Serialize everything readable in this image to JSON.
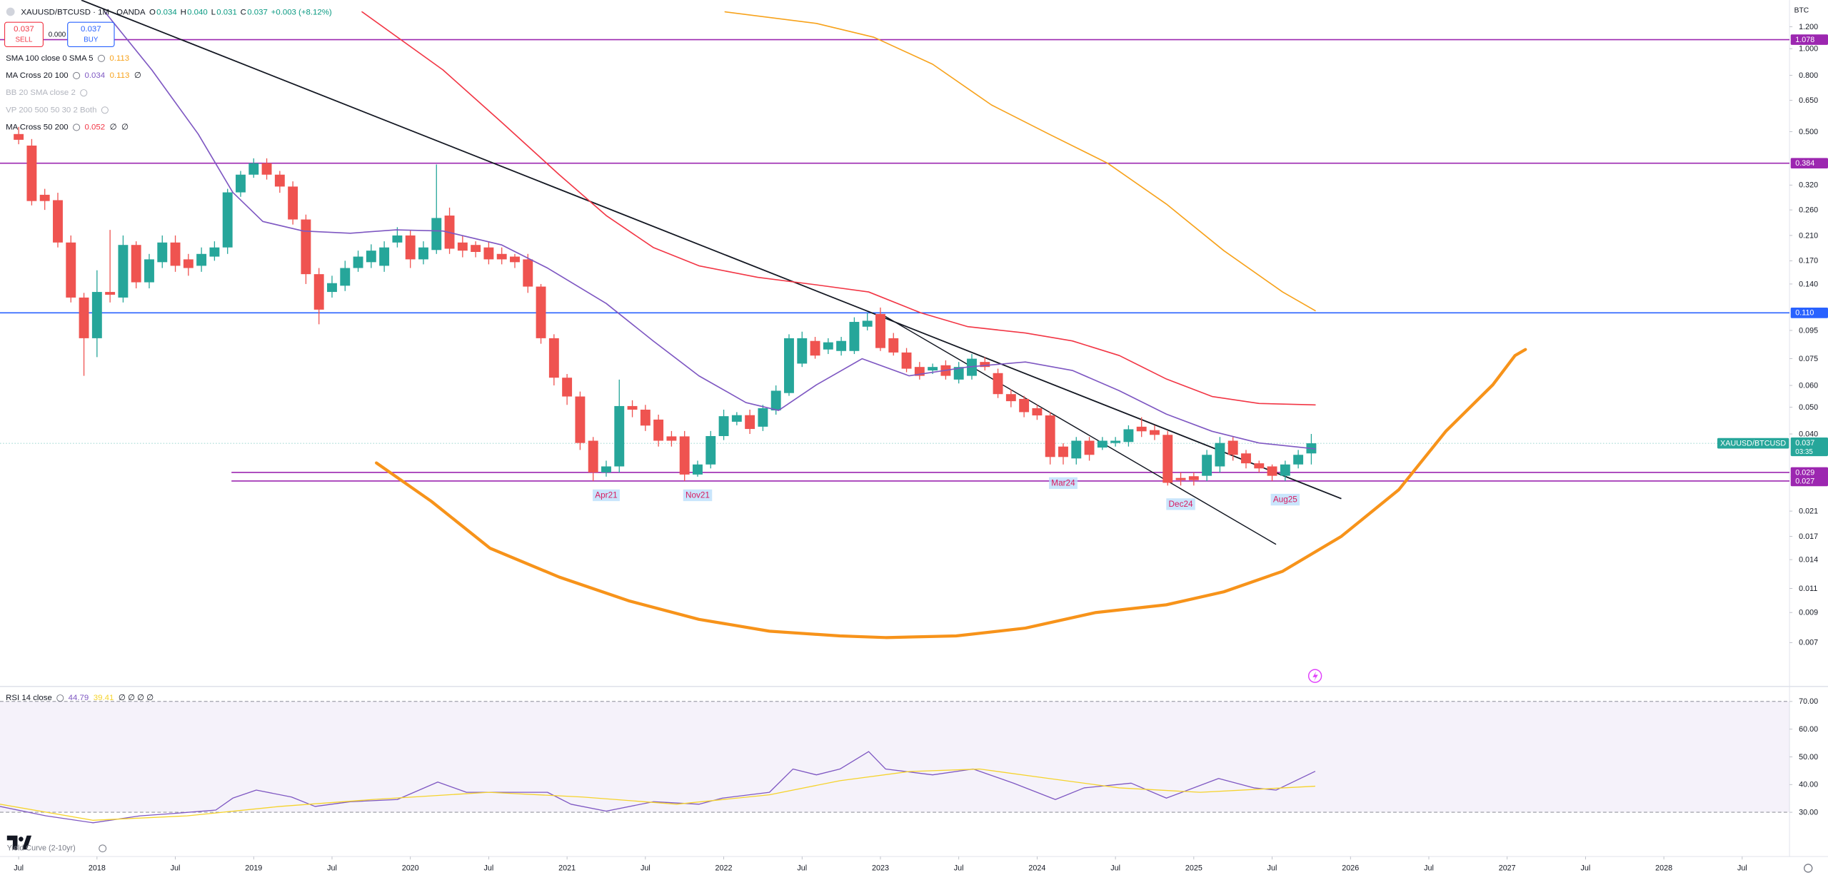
{
  "header": {
    "symbol": "XAUUSD/BTCUSD · 1M · OANDA",
    "ohlc": [
      {
        "k": "O",
        "v": "0.034"
      },
      {
        "k": "H",
        "v": "0.040"
      },
      {
        "k": "L",
        "v": "0.031"
      },
      {
        "k": "C",
        "v": "0.037"
      }
    ],
    "change": "+0.003 (+8.12%)",
    "sell_price": "0.037",
    "sell": "SELL",
    "spread": "0.000",
    "buy_price": "0.037",
    "buy": "BUY",
    "currency": "BTC",
    "indicators": [
      {
        "name": "SMA 100 close 0 SMA 5",
        "values": [
          {
            "text": "0.113",
            "color": "#f7a21b"
          }
        ]
      },
      {
        "name": "MA Cross 20 100",
        "values": [
          {
            "text": "0.034",
            "color": "#7e57c2"
          },
          {
            "text": "0.113",
            "color": "#f7a21b"
          },
          {
            "text": "∅",
            "color": "#131722"
          }
        ]
      },
      {
        "name": "BB 20 SMA close 2",
        "hidden": true,
        "values": []
      },
      {
        "name": "VP 200 500 50 30 2 Both",
        "hidden": true,
        "values": []
      },
      {
        "name": "MA Cross 50 200",
        "values": [
          {
            "text": "0.052",
            "color": "#f23645"
          },
          {
            "text": "∅",
            "color": "#131722"
          },
          {
            "text": "∅",
            "color": "#131722"
          }
        ]
      }
    ],
    "yield_curve": "Yield Curve (2-10yr)"
  },
  "chart_data": [
    {
      "type": "candlestick",
      "log_scale": true,
      "grid": false,
      "up_color": "#26a69a",
      "down_color": "#ef5350",
      "xlim": [
        -0.4286,
        136.625
      ],
      "ylim": [
        0.0049,
        1.5
      ],
      "xticks": [
        {
          "value": 1,
          "label": "Jul"
        },
        {
          "value": 7,
          "label": "2018"
        },
        {
          "value": 13,
          "label": "Jul"
        },
        {
          "value": 19,
          "label": "2019"
        },
        {
          "value": 25,
          "label": "Jul"
        },
        {
          "value": 31,
          "label": "2020"
        },
        {
          "value": 37,
          "label": "Jul"
        },
        {
          "value": 43,
          "label": "2021"
        },
        {
          "value": 49,
          "label": "Jul"
        },
        {
          "value": 55,
          "label": "2022"
        },
        {
          "value": 61,
          "label": "Jul"
        },
        {
          "value": 67,
          "label": "2023"
        },
        {
          "value": 73,
          "label": "Jul"
        },
        {
          "value": 79,
          "label": "2024"
        },
        {
          "value": 85,
          "label": "Jul"
        },
        {
          "value": 91,
          "label": "2025"
        },
        {
          "value": 97,
          "label": "Jul"
        },
        {
          "value": 103,
          "label": "2026"
        },
        {
          "value": 109,
          "label": "Jul"
        },
        {
          "value": 115,
          "label": "2027"
        },
        {
          "value": 121,
          "label": "Jul"
        },
        {
          "value": 127,
          "label": "2028"
        },
        {
          "value": 133,
          "label": "Jul"
        }
      ],
      "yticks": [
        {
          "value": 1.2,
          "label": "1.200"
        },
        {
          "value": 1.0,
          "label": "1.000"
        },
        {
          "value": 0.8,
          "label": "0.800"
        },
        {
          "value": 0.65,
          "label": "0.650"
        },
        {
          "value": 0.5,
          "label": "0.500"
        },
        {
          "value": 0.32,
          "label": "0.320"
        },
        {
          "value": 0.26,
          "label": "0.260"
        },
        {
          "value": 0.21,
          "label": "0.210"
        },
        {
          "value": 0.17,
          "label": "0.170"
        },
        {
          "value": 0.14,
          "label": "0.140"
        },
        {
          "value": 0.095,
          "label": "0.095"
        },
        {
          "value": 0.075,
          "label": "0.075"
        },
        {
          "value": 0.06,
          "label": "0.060"
        },
        {
          "value": 0.05,
          "label": "0.050"
        },
        {
          "value": 0.04,
          "label": "0.040"
        },
        {
          "value": 0.021,
          "label": "0.021"
        },
        {
          "value": 0.017,
          "label": "0.017"
        },
        {
          "value": 0.014,
          "label": "0.014"
        },
        {
          "value": 0.011,
          "label": "0.011"
        },
        {
          "value": 0.009,
          "label": "0.009"
        },
        {
          "value": 0.007,
          "label": "0.007"
        }
      ],
      "open": [
        0.49,
        0.445,
        0.295,
        0.282,
        0.198,
        0.125,
        0.089,
        0.131,
        0.125,
        0.194,
        0.142,
        0.168,
        0.198,
        0.172,
        0.163,
        0.176,
        0.19,
        0.301,
        0.349,
        0.384,
        0.349,
        0.316,
        0.24,
        0.152,
        0.131,
        0.138,
        0.16,
        0.168,
        0.163,
        0.198,
        0.21,
        0.172,
        0.186,
        0.248,
        0.198,
        0.194,
        0.19,
        0.18,
        0.176,
        0.172,
        0.137,
        0.089,
        0.064,
        0.0547,
        0.0378,
        0.029,
        0.0305,
        0.0505,
        0.049,
        0.0451,
        0.0392,
        0.0392,
        0.0285,
        0.031,
        0.0393,
        0.0443,
        0.0468,
        0.0425,
        0.0487,
        0.0563,
        0.072,
        0.087,
        0.081,
        0.08,
        0.08,
        0.098,
        0.109,
        0.089,
        0.079,
        0.07,
        0.068,
        0.071,
        0.063,
        0.065,
        0.073,
        0.0665,
        0.0558,
        0.0536,
        0.0496,
        0.0467,
        0.036,
        0.0326,
        0.0378,
        0.0357,
        0.0371,
        0.0374,
        0.0425,
        0.0413,
        0.0397,
        0.0277,
        0.0281,
        0.0282,
        0.0305,
        0.0378,
        0.034,
        0.0313,
        0.0305,
        0.0282,
        0.031,
        0.034
      ],
      "high": [
        0.52,
        0.47,
        0.31,
        0.3,
        0.21,
        0.13,
        0.157,
        0.22,
        0.21,
        0.2,
        0.18,
        0.21,
        0.21,
        0.18,
        0.19,
        0.2,
        0.31,
        0.36,
        0.4,
        0.4,
        0.36,
        0.33,
        0.25,
        0.16,
        0.15,
        0.17,
        0.185,
        0.195,
        0.2,
        0.225,
        0.22,
        0.2,
        0.38,
        0.265,
        0.21,
        0.2,
        0.2,
        0.19,
        0.18,
        0.18,
        0.14,
        0.092,
        0.066,
        0.057,
        0.039,
        0.032,
        0.063,
        0.053,
        0.051,
        0.047,
        0.041,
        0.041,
        0.032,
        0.041,
        0.049,
        0.048,
        0.049,
        0.051,
        0.06,
        0.092,
        0.094,
        0.09,
        0.089,
        0.09,
        0.106,
        0.11,
        0.115,
        0.093,
        0.082,
        0.073,
        0.072,
        0.074,
        0.073,
        0.078,
        0.076,
        0.069,
        0.058,
        0.055,
        0.051,
        0.048,
        0.037,
        0.039,
        0.039,
        0.039,
        0.039,
        0.043,
        0.046,
        0.043,
        0.041,
        0.029,
        0.029,
        0.035,
        0.039,
        0.039,
        0.035,
        0.032,
        0.031,
        0.032,
        0.035,
        0.04
      ],
      "low": [
        0.45,
        0.27,
        0.26,
        0.19,
        0.12,
        0.065,
        0.076,
        0.12,
        0.12,
        0.135,
        0.135,
        0.16,
        0.155,
        0.15,
        0.155,
        0.17,
        0.18,
        0.29,
        0.34,
        0.335,
        0.3,
        0.23,
        0.14,
        0.1,
        0.125,
        0.132,
        0.155,
        0.16,
        0.155,
        0.19,
        0.16,
        0.165,
        0.18,
        0.18,
        0.175,
        0.175,
        0.165,
        0.165,
        0.16,
        0.13,
        0.085,
        0.06,
        0.051,
        0.035,
        0.027,
        0.028,
        0.029,
        0.046,
        0.041,
        0.036,
        0.036,
        0.027,
        0.028,
        0.03,
        0.038,
        0.043,
        0.04,
        0.041,
        0.047,
        0.055,
        0.07,
        0.075,
        0.078,
        0.077,
        0.078,
        0.095,
        0.08,
        0.077,
        0.067,
        0.063,
        0.066,
        0.063,
        0.061,
        0.063,
        0.068,
        0.054,
        0.05,
        0.046,
        0.045,
        0.031,
        0.031,
        0.031,
        0.032,
        0.035,
        0.036,
        0.036,
        0.039,
        0.038,
        0.026,
        0.026,
        0.026,
        0.027,
        0.029,
        0.032,
        0.03,
        0.029,
        0.027,
        0.027,
        0.03,
        0.031
      ],
      "close": [
        0.467,
        0.28,
        0.28,
        0.198,
        0.125,
        0.089,
        0.131,
        0.128,
        0.194,
        0.142,
        0.172,
        0.198,
        0.163,
        0.16,
        0.18,
        0.19,
        0.301,
        0.349,
        0.384,
        0.349,
        0.316,
        0.24,
        0.152,
        0.113,
        0.141,
        0.16,
        0.176,
        0.185,
        0.19,
        0.21,
        0.172,
        0.19,
        0.243,
        0.188,
        0.185,
        0.183,
        0.172,
        0.172,
        0.168,
        0.137,
        0.089,
        0.064,
        0.0547,
        0.0371,
        0.029,
        0.0305,
        0.0505,
        0.049,
        0.0429,
        0.0378,
        0.0378,
        0.0285,
        0.031,
        0.0393,
        0.0464,
        0.0468,
        0.0417,
        0.0496,
        0.0574,
        0.089,
        0.089,
        0.077,
        0.086,
        0.087,
        0.102,
        0.103,
        0.082,
        0.079,
        0.069,
        0.065,
        0.07,
        0.065,
        0.07,
        0.075,
        0.07,
        0.0558,
        0.0526,
        0.048,
        0.0467,
        0.033,
        0.033,
        0.0378,
        0.0336,
        0.0378,
        0.0378,
        0.0416,
        0.0409,
        0.0397,
        0.0266,
        0.0272,
        0.0272,
        0.0336,
        0.0371,
        0.0336,
        0.0313,
        0.03,
        0.0282,
        0.031,
        0.0336,
        0.037
      ],
      "series": [
        {
          "color": "#7e57c2",
          "width": 1,
          "x": [
            7.6,
            11.2,
            14.75,
            17.4,
            19.7,
            22.8,
            26.4,
            29.9,
            33.5,
            38.0,
            41.5,
            46.0,
            49.6,
            53.1,
            56.7,
            59.2,
            62.1,
            65.6,
            69.2,
            73.7,
            78.1,
            81.7,
            85.3,
            88.9,
            92.4,
            96.0,
            100.3
          ],
          "values": [
            1.36,
            0.837,
            0.49,
            0.301,
            0.236,
            0.218,
            0.214,
            0.22,
            0.218,
            0.194,
            0.16,
            0.119,
            0.087,
            0.065,
            0.052,
            0.0487,
            0.0603,
            0.075,
            0.065,
            0.07,
            0.073,
            0.068,
            0.0574,
            0.0472,
            0.0409,
            0.0371,
            0.0353
          ]
        },
        {
          "color": "#f23645",
          "width": 1,
          "x": [
            27.3,
            33.5,
            38.0,
            42.4,
            46.0,
            49.6,
            53.1,
            57.6,
            62.1,
            66.1,
            70.1,
            73.7,
            78.1,
            81.7,
            85.3,
            88.9,
            92.4,
            96.0,
            100.3
          ],
          "values": [
            1.36,
            0.837,
            0.54,
            0.349,
            0.248,
            0.19,
            0.163,
            0.148,
            0.139,
            0.131,
            0.11,
            0.098,
            0.093,
            0.087,
            0.077,
            0.0633,
            0.0547,
            0.0516,
            0.051
          ]
        },
        {
          "color": "#f7a21b",
          "width": 1,
          "x": [
            55.1,
            62.1,
            66.5,
            71.0,
            75.5,
            79.9,
            84.4,
            88.9,
            93.3,
            97.8,
            100.3
          ],
          "values": [
            1.36,
            1.235,
            1.1,
            0.878,
            0.625,
            0.49,
            0.384,
            0.273,
            0.185,
            0.131,
            0.112
          ]
        },
        {
          "color": "#f7931a",
          "width": 2.6,
          "x": [
            28.4,
            32.6,
            37.1,
            42.4,
            47.8,
            53.1,
            58.5,
            63.9,
            67.4,
            72.8,
            78.1,
            83.5,
            88.9,
            93.3,
            97.8,
            102.3,
            106.7,
            110.3,
            113.9,
            115.6,
            116.4
          ],
          "values": [
            0.0314,
            0.0228,
            0.0154,
            0.0121,
            0.0099,
            0.0085,
            0.0077,
            0.0074,
            0.0073,
            0.0074,
            0.0079,
            0.009,
            0.0096,
            0.0107,
            0.0127,
            0.017,
            0.0251,
            0.0409,
            0.0603,
            0.077,
            0.081
          ]
        }
      ],
      "trendlines": [
        {
          "color": "#131722",
          "width": 1.1,
          "x": [
            5.8,
            102.3
          ],
          "values": [
            1.5,
            0.0233
          ]
        },
        {
          "color": "#131722",
          "width": 0.9,
          "x": [
            67.2,
            97.3
          ],
          "values": [
            0.108,
            0.0159
          ]
        }
      ],
      "hlines": [
        {
          "value": 1.078,
          "label": "1.078",
          "color": "#9c27b0"
        },
        {
          "value": 0.384,
          "label": "0.384",
          "color": "#9c27b0"
        },
        {
          "value": 0.11,
          "label": "0.110",
          "color": "#2962ff"
        },
        {
          "value": 0.029,
          "label": "0.029",
          "color": "#9c27b0",
          "start": 17.3
        },
        {
          "value": 0.027,
          "label": "0.027",
          "color": "#9c27b0",
          "start": 17.3
        }
      ],
      "last": {
        "value": 0.037,
        "label": "0.037",
        "symbol": "XAUUSD/BTCUSD",
        "countdown": "03:35",
        "color": "#26a69a"
      },
      "annotations": [
        {
          "label": "Apr21",
          "x": 46
        },
        {
          "label": "Nov21",
          "x": 53
        },
        {
          "label": "Mar24",
          "x": 81
        },
        {
          "label": "Dec24",
          "x": 90
        },
        {
          "label": "Aug25",
          "x": 98
        }
      ]
    },
    {
      "type": "line",
      "title": "RSI 14 close",
      "ylim": [
        14,
        75
      ],
      "band": [
        30,
        70
      ],
      "yticks": [
        {
          "value": 70,
          "label": "70.00"
        },
        {
          "value": 60,
          "label": "60.00"
        },
        {
          "value": 50,
          "label": "50.00"
        },
        {
          "value": 40,
          "label": "40.00"
        },
        {
          "value": 30,
          "label": "30.00"
        }
      ],
      "legend": [
        {
          "text": "44.79",
          "color": "#7e57c2"
        },
        {
          "text": "39.41",
          "color": "#f5d32c"
        },
        {
          "text": "∅ ∅ ∅ ∅",
          "color": "#131722"
        }
      ],
      "series": [
        {
          "color": "#7e57c2",
          "x": [
            -0.43,
            3.1,
            6.7,
            10.3,
            13.0,
            16.1,
            17.4,
            19.2,
            21.9,
            23.7,
            26.4,
            30.0,
            33.1,
            35.3,
            38.9,
            41.5,
            43.3,
            46.0,
            49.6,
            53.1,
            54.9,
            58.5,
            60.3,
            62.1,
            63.9,
            66.1,
            67.4,
            71.0,
            74.1,
            77.2,
            80.4,
            82.6,
            86.2,
            88.9,
            92.9,
            95.6,
            97.3,
            100.3
          ],
          "values": [
            32.1,
            28.7,
            26.2,
            28.7,
            29.6,
            30.8,
            35.1,
            38.0,
            35.5,
            32.1,
            33.8,
            34.6,
            40.9,
            37.2,
            37.2,
            37.2,
            32.9,
            30.4,
            33.8,
            32.9,
            35.1,
            37.2,
            45.6,
            43.5,
            45.6,
            51.9,
            45.6,
            43.5,
            45.6,
            40.5,
            34.6,
            38.8,
            40.5,
            35.1,
            42.2,
            38.8,
            38.0,
            44.79
          ]
        },
        {
          "color": "#f5d32c",
          "x": [
            -0.43,
            6.7,
            13.9,
            21.0,
            28.1,
            37.0,
            44.2,
            51.4,
            58.5,
            63.9,
            69.2,
            74.6,
            79.9,
            85.3,
            91.5,
            100.3
          ],
          "values": [
            32.9,
            27.1,
            28.7,
            32.1,
            34.6,
            37.2,
            35.5,
            32.9,
            36.3,
            41.4,
            44.7,
            45.6,
            42.2,
            38.8,
            37.2,
            39.41
          ]
        }
      ]
    }
  ]
}
